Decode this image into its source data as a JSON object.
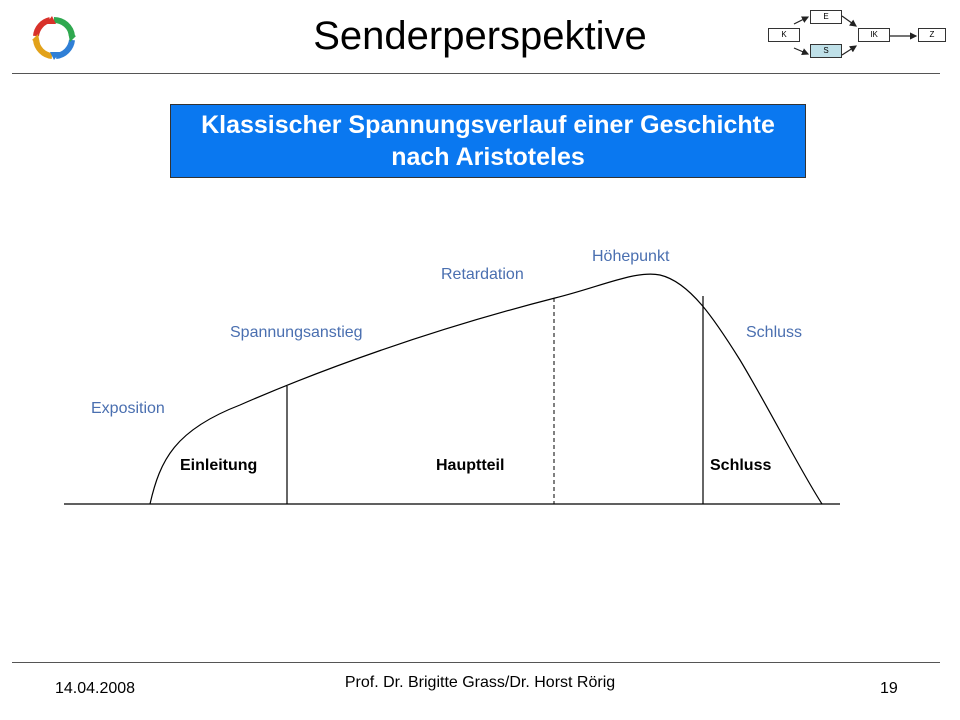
{
  "header": {
    "title": "Senderperspektive",
    "logo_icon": "cycle-arrows-icon",
    "nav_map": {
      "boxes": [
        "K",
        "E",
        "S",
        "IK",
        "Z"
      ],
      "active": "S",
      "active_color": "#bfe0e8"
    }
  },
  "diagram": {
    "title_line1": "Klassischer Spannungsverlauf einer Geschichte",
    "title_line2": "nach Aristoteles",
    "title_color": "#0a78f0",
    "stages": {
      "exposition": "Exposition",
      "spannungsanstieg": "Spannungsanstieg",
      "retardation": "Retardation",
      "hoehepunkt": "Höhepunkt",
      "schluss": "Schluss"
    },
    "parts": {
      "einleitung": "Einleitung",
      "hauptteil": "Hauptteil",
      "schluss": "Schluss"
    },
    "stage_color": "#4a6fb0"
  },
  "footer": {
    "date": "14.04.2008",
    "author": "Prof. Dr. Brigitte Grass/Dr. Horst Rörig",
    "page": "19"
  }
}
